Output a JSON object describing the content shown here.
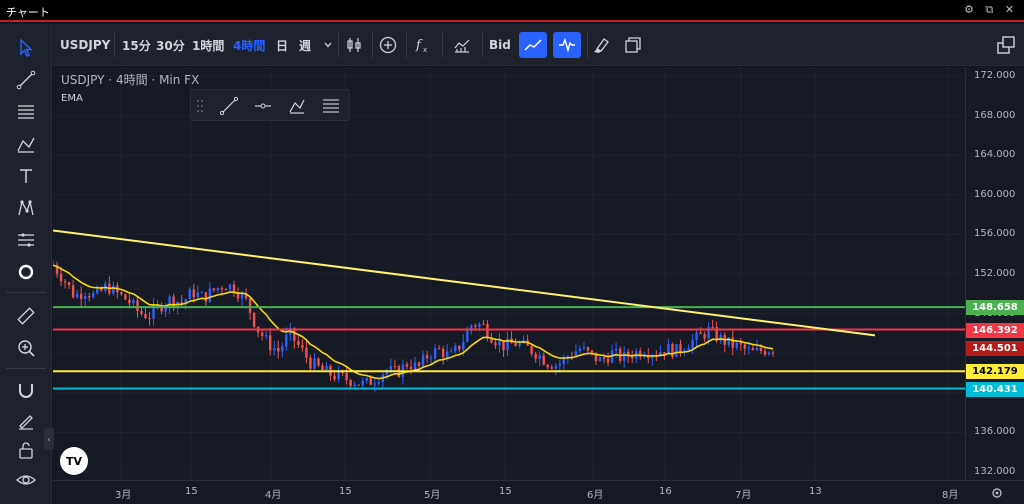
{
  "window": {
    "title": "チャート",
    "controls": "⚙ ⧉ ✕"
  },
  "toolbar": {
    "symbol": "USDJPY",
    "intervals": [
      "15分",
      "30分",
      "1時間",
      "4時間",
      "日",
      "週"
    ],
    "active_interval": "4時間",
    "bid_label": "Bid"
  },
  "legend": {
    "symbol": "USDJPY",
    "interval": "4時間",
    "source": "Min FX",
    "indicator": "EMA"
  },
  "logo_text": "TV",
  "colors": {
    "green_line": "#4caf50",
    "red_line": "#f23645",
    "yellow_line": "#ffeb3b",
    "cyan_line": "#00bcd4",
    "trend_line": "#fff176",
    "ema": "#f5d90a",
    "candle_up": "#2962ff",
    "candle_down": "#ef5350"
  },
  "chart_data": {
    "type": "candlestick",
    "price_ticks": [
      "172.000",
      "168.000",
      "164.000",
      "160.000",
      "156.000",
      "152.000",
      "148.000",
      "144.000",
      "140.000",
      "136.000",
      "132.000"
    ],
    "price_tick_values": [
      172,
      168,
      164,
      160,
      156,
      152,
      148,
      144,
      140,
      136,
      132
    ],
    "time_ticks": [
      "3月",
      "15",
      "4月",
      "15",
      "5月",
      "15",
      "6月",
      "16",
      "7月",
      "13",
      "8月"
    ],
    "horizontal_levels": [
      {
        "price": 148.658,
        "label": "148.658",
        "color": "#4caf50"
      },
      {
        "price": 146.392,
        "label": "146.392",
        "color": "#f23645"
      },
      {
        "price": 142.179,
        "label": "142.179",
        "color": "#ffeb3b"
      },
      {
        "price": 140.431,
        "label": "140.431",
        "color": "#00bcd4"
      }
    ],
    "current_price": {
      "price": 144.501,
      "label": "144.501",
      "color": "#b71c1c"
    },
    "trend_line": {
      "from_price": 156.4,
      "to_price": 145.8
    },
    "series_approx": [
      152.9,
      151.5,
      149.8,
      150.3,
      149.7,
      150.8,
      150.0,
      149.3,
      148.1,
      147.8,
      148.8,
      149.5,
      149.1,
      150.2,
      149.6,
      150.4,
      151.0,
      150.5,
      149.2,
      146.5,
      145.0,
      144.2,
      146.0,
      144.5,
      143.0,
      142.3,
      141.8,
      141.5,
      141.2,
      140.8,
      141.5,
      142.3,
      142.0,
      143.0,
      142.5,
      144.0,
      144.3,
      143.6,
      145.0,
      147.0,
      146.8,
      145.5,
      144.7,
      145.0,
      144.6,
      144.0,
      143.1,
      142.8,
      143.8,
      144.5,
      143.8,
      143.2,
      144.0,
      143.5,
      144.0,
      144.3,
      144.0,
      144.5,
      144.2,
      145.0,
      145.5,
      146.3,
      145.5,
      144.9,
      144.6,
      144.0,
      144.3,
      144.5
    ]
  }
}
